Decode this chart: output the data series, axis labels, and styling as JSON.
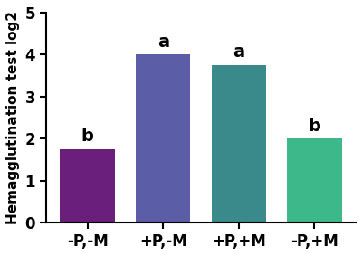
{
  "categories": [
    "-P,-M",
    "+P,-M",
    "+P,+M",
    "-P,+M"
  ],
  "values": [
    1.75,
    4.0,
    3.75,
    2.0
  ],
  "bar_colors": [
    "#6B1F7C",
    "#5B5EA6",
    "#3A8A8C",
    "#3CB88A"
  ],
  "labels": [
    "b",
    "a",
    "a",
    "b"
  ],
  "ylabel": "Hemagglutination test log2",
  "ylim": [
    0,
    5
  ],
  "yticks": [
    0,
    1,
    2,
    3,
    4,
    5
  ],
  "background_color": "#ffffff",
  "label_fontsize": 14,
  "tick_fontsize": 12,
  "ylabel_fontsize": 11,
  "bar_width": 0.72,
  "figsize": [
    4.0,
    2.83
  ],
  "dpi": 100
}
